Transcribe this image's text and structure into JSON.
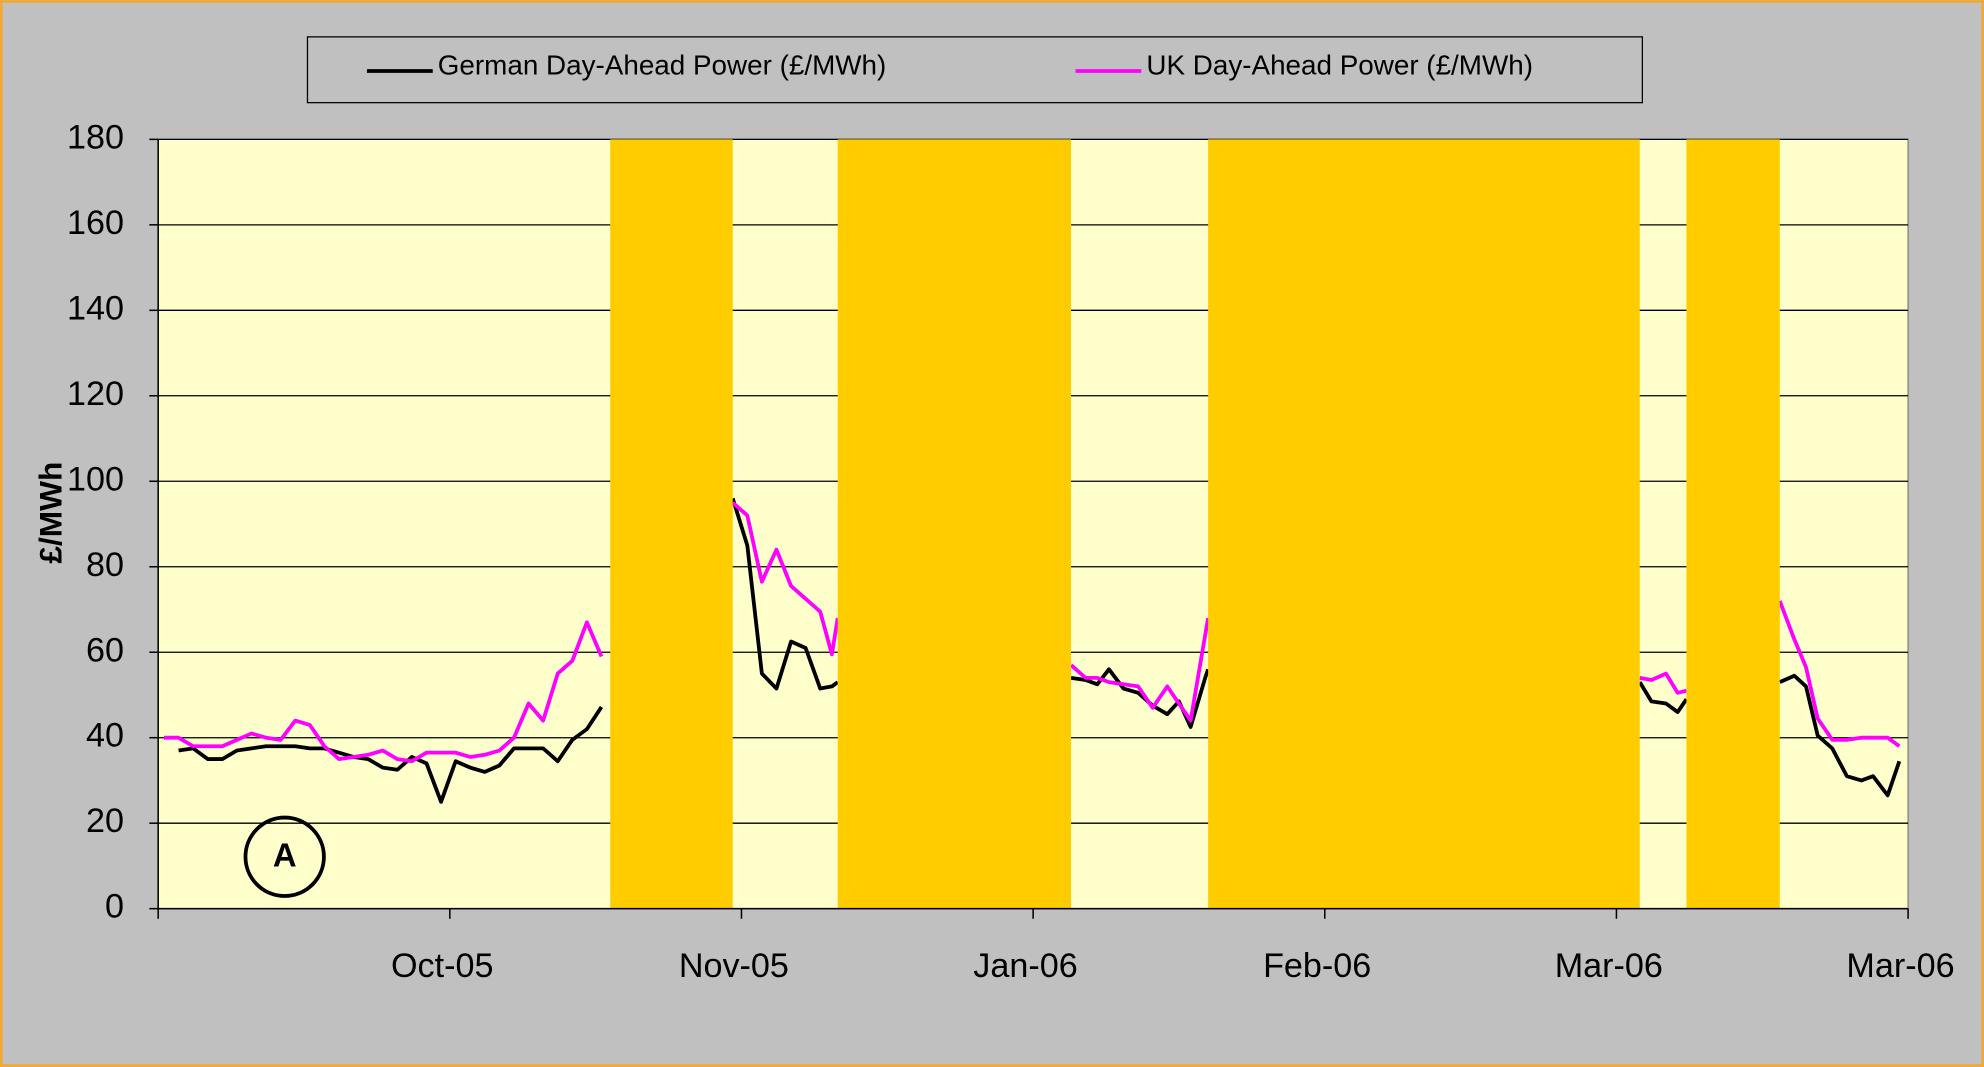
{
  "chart_data": {
    "type": "line",
    "y_label": "£/MWh",
    "annotation": "A",
    "xlim": [
      0,
      6
    ],
    "xticks": [
      {
        "value": 1,
        "label": "Oct-05"
      },
      {
        "value": 2,
        "label": "Nov-05"
      },
      {
        "value": 3,
        "label": "Jan-06"
      },
      {
        "value": 4,
        "label": "Feb-06"
      },
      {
        "value": 5,
        "label": "Mar-06"
      },
      {
        "value": 6,
        "label": "Mar-06"
      }
    ],
    "ylim": [
      0,
      180
    ],
    "yticks": [
      0,
      20,
      40,
      60,
      80,
      100,
      120,
      140,
      160,
      180
    ],
    "grid": true,
    "legend": "top",
    "plot_background": "#ffffcc",
    "shaded_color": "#ffcc00",
    "shaded_regions": [
      [
        1.55,
        1.97
      ],
      [
        2.33,
        3.13
      ],
      [
        3.6,
        5.08
      ],
      [
        5.24,
        5.56
      ]
    ],
    "x": [
      0.02,
      0.07,
      0.12,
      0.17,
      0.22,
      0.27,
      0.32,
      0.37,
      0.42,
      0.47,
      0.52,
      0.57,
      0.62,
      0.67,
      0.72,
      0.77,
      0.82,
      0.87,
      0.92,
      0.97,
      1.02,
      1.07,
      1.12,
      1.17,
      1.22,
      1.27,
      1.32,
      1.37,
      1.42,
      1.47,
      1.52,
      1.75,
      1.97,
      2.02,
      2.07,
      2.12,
      2.17,
      2.22,
      2.27,
      2.31,
      2.33,
      2.7,
      3.13,
      3.18,
      3.22,
      3.26,
      3.31,
      3.36,
      3.41,
      3.46,
      3.5,
      3.54,
      3.59,
      3.6,
      4.3,
      5.08,
      5.12,
      5.17,
      5.21,
      5.24,
      5.4,
      5.56,
      5.61,
      5.65,
      5.69,
      5.74,
      5.79,
      5.84,
      5.88,
      5.93,
      5.97
    ],
    "series": [
      {
        "name": "German Day-Ahead Power (£/MWh)",
        "color": "#000000",
        "values": [
          null,
          37,
          37.5,
          35,
          35,
          37,
          37.5,
          38,
          38,
          38,
          37.5,
          37.5,
          36.5,
          35.5,
          35,
          33,
          32.5,
          35.5,
          34,
          25,
          34.5,
          33,
          32,
          33.5,
          37.5,
          37.5,
          37.5,
          34.5,
          39.5,
          42,
          47.2,
          null,
          96,
          85,
          55,
          51.5,
          62.5,
          61,
          51.5,
          52,
          53,
          null,
          54,
          53.5,
          52.5,
          56,
          51.5,
          50.5,
          47.5,
          45.5,
          48.5,
          42.5,
          54,
          56,
          null,
          53,
          48.5,
          48,
          46,
          49,
          null,
          53,
          54.5,
          52,
          40.5,
          37.5,
          31,
          30,
          31,
          26.5,
          34.5
        ]
      },
      {
        "name": "UK Day-Ahead Power (£/MWh)",
        "color": "#ff00ff",
        "values": [
          40,
          40,
          38,
          38,
          38,
          39.5,
          41,
          40,
          39.5,
          44,
          43,
          38,
          35,
          35.5,
          36,
          37,
          35,
          34.5,
          36.5,
          36.5,
          36.5,
          35.5,
          36,
          37,
          40,
          48,
          44,
          55,
          58,
          67,
          59,
          null,
          95,
          92,
          76.5,
          84,
          75.5,
          72.5,
          69.5,
          59.5,
          68,
          null,
          57,
          54,
          54,
          53,
          52.5,
          52,
          47,
          52,
          48,
          44,
          64,
          68,
          null,
          54,
          53.5,
          55,
          50.5,
          51,
          null,
          72,
          63,
          56.5,
          44.5,
          39.5,
          39.5,
          40,
          40,
          40,
          38
        ]
      }
    ]
  }
}
